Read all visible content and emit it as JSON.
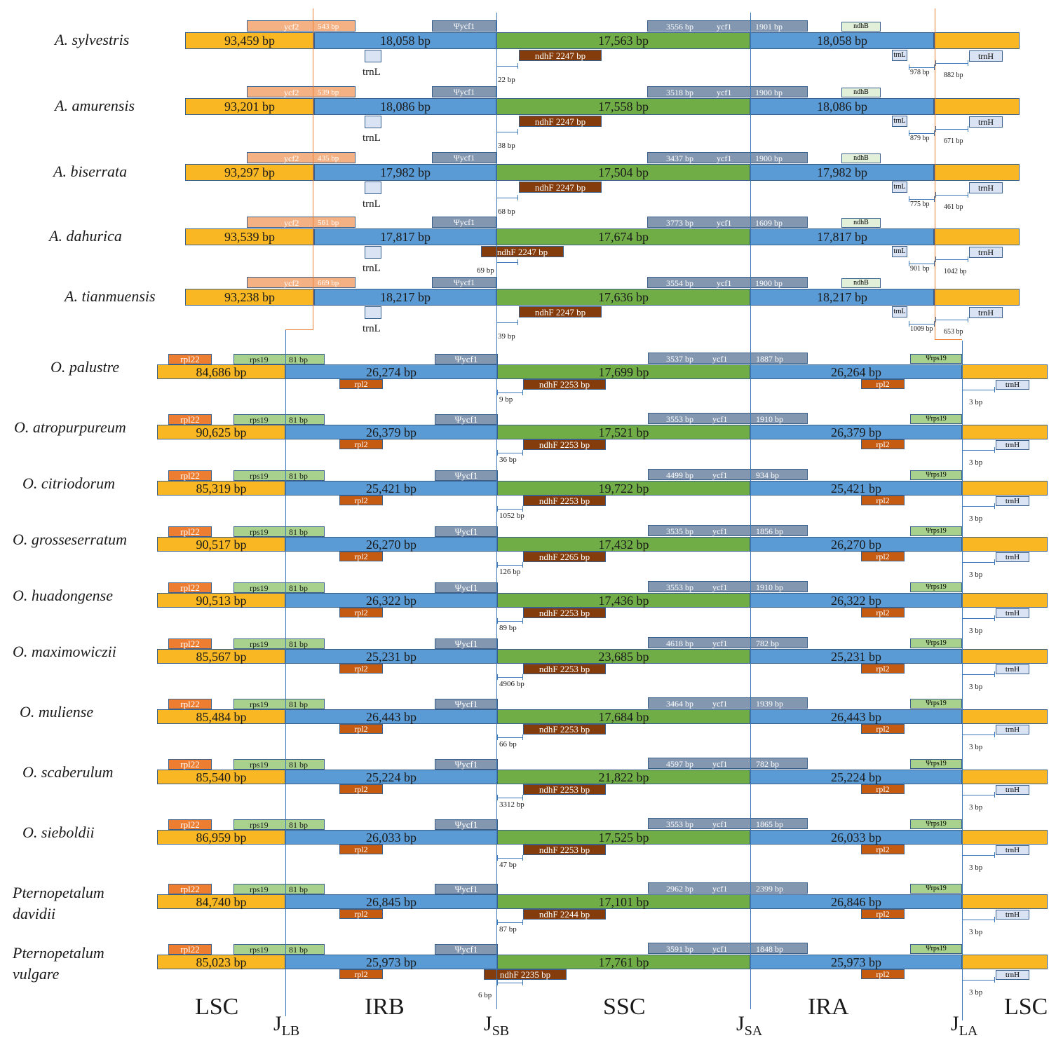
{
  "colors": {
    "lsc": "#f9b823",
    "ir": "#5b9bd5",
    "ssc": "#70ad47",
    "ycf2": "#f4b183",
    "ycf1": "#8497b0",
    "ndhF": "#843c0c",
    "ndhB": "#e2efd9",
    "trn": "#dae3f3",
    "rpl22": "#ed7d31",
    "rps19": "#a9d18e",
    "rpl2": "#c55a11",
    "junction_line": "#3a78b8",
    "orange_line": "#ed7d31"
  },
  "angelica": [
    {
      "name": "A. sylvestris",
      "lsc": "93,459 bp",
      "irb": "18,058 bp",
      "ssc": "17,563 bp",
      "ira": "18,058 bp",
      "ycf2": "ycf2",
      "ycf2_len": "543 bp",
      "psi_ycf1": "Ψycf1",
      "ycf1_left": "3556 bp",
      "ycf1": "ycf1",
      "ycf1_right": "1901 bp",
      "ndhB": "ndhB",
      "trnL": "trnL",
      "ndhF": "ndhF 2247 bp",
      "ndhF_gap": "22 bp",
      "trnL2": "trnL",
      "trnH": "trnH",
      "gap_a": "978 bp",
      "gap_b": "882 bp"
    },
    {
      "name": "A. amurensis",
      "lsc": "93,201 bp",
      "irb": "18,086 bp",
      "ssc": "17,558 bp",
      "ira": "18,086 bp",
      "ycf2": "ycf2",
      "ycf2_len": "539 bp",
      "psi_ycf1": "Ψycf1",
      "ycf1_left": "3518 bp",
      "ycf1": "ycf1",
      "ycf1_right": "1900 bp",
      "ndhB": "ndhB",
      "trnL": "trnL",
      "ndhF": "ndhF 2247 bp",
      "ndhF_gap": "38 bp",
      "trnL2": "trnL",
      "trnH": "trnH",
      "gap_a": "879 bp",
      "gap_b": "671 bp"
    },
    {
      "name": "A. biserrata",
      "lsc": "93,297 bp",
      "irb": "17,982 bp",
      "ssc": "17,504 bp",
      "ira": "17,982 bp",
      "ycf2": "ycf2",
      "ycf2_len": "435 bp",
      "psi_ycf1": "Ψycf1",
      "ycf1_left": "3437 bp",
      "ycf1": "ycf1",
      "ycf1_right": "1900 bp",
      "ndhB": "ndhB",
      "trnL": "trnL",
      "ndhF": "ndhF 2247 bp",
      "ndhF_gap": "68 bp",
      "trnL2": "trnL",
      "trnH": "trnH",
      "gap_a": "775 bp",
      "gap_b": "461 bp"
    },
    {
      "name": "A. dahurica",
      "lsc": "93,539 bp",
      "irb": "17,817 bp",
      "ssc": "17,674 bp",
      "ira": "17,817 bp",
      "ycf2": "ycf2",
      "ycf2_len": "561 bp",
      "psi_ycf1": "Ψycf1",
      "ycf1_left": "3773 bp",
      "ycf1": "ycf1",
      "ycf1_right": "1609 bp",
      "ndhB": "ndhB",
      "trnL": "trnL",
      "ndhF": "ndhF 2247 bp",
      "ndhF_gap": "69 bp",
      "trnL2": "trnL",
      "trnH": "trnH",
      "gap_a": "901 bp",
      "gap_b": "1042 bp"
    },
    {
      "name": "A. tianmuensis",
      "lsc": "93,238 bp",
      "irb": "18,217 bp",
      "ssc": "17,636 bp",
      "ira": "18,217 bp",
      "ycf2": "ycf2",
      "ycf2_len": "669 bp",
      "psi_ycf1": "Ψycf1",
      "ycf1_left": "3554 bp",
      "ycf1": "ycf1",
      "ycf1_right": "1900 bp",
      "ndhB": "ndhB",
      "trnL": "trnL",
      "ndhF": "ndhF 2247 bp",
      "ndhF_gap": "39 bp",
      "trnL2": "trnL",
      "trnH": "trnH",
      "gap_a": "1009 bp",
      "gap_b": "653 bp"
    }
  ],
  "others": [
    {
      "name": "O. palustre",
      "lsc": "84,686 bp",
      "irb": "26,274 bp",
      "ssc": "17,699 bp",
      "ira": "26,264 bp",
      "rpl22": "rpl22",
      "rps19": "rps19",
      "rps19_len": "81 bp",
      "psi_ycf1": "Ψycf1",
      "ycf1_left": "3537 bp",
      "ycf1": "ycf1",
      "ycf1_right": "1887 bp",
      "psi_rps19": "Ψrps19",
      "rpl2": "rpl2",
      "ndhF": "ndhF 2253 bp",
      "ndhF_gap": "9 bp",
      "rpl2b": "rpl2",
      "trnH": "trnH",
      "gap": "3 bp"
    },
    {
      "name": "O. atropurpureum",
      "lsc": "90,625 bp",
      "irb": "26,379 bp",
      "ssc": "17,521 bp",
      "ira": "26,379 bp",
      "rpl22": "rpl22",
      "rps19": "rps19",
      "rps19_len": "81 bp",
      "psi_ycf1": "Ψycf1",
      "ycf1_left": "3553 bp",
      "ycf1": "ycf1",
      "ycf1_right": "1910 bp",
      "psi_rps19": "Ψrps19",
      "rpl2": "rpl2",
      "ndhF": "ndhF 2253 bp",
      "ndhF_gap": "36 bp",
      "rpl2b": "rpl2",
      "trnH": "trnH",
      "gap": "3 bp"
    },
    {
      "name": "O. citriodorum",
      "lsc": "85,319 bp",
      "irb": "25,421 bp",
      "ssc": "19,722 bp",
      "ira": "25,421 bp",
      "rpl22": "rpl22",
      "rps19": "rps19",
      "rps19_len": "81 bp",
      "psi_ycf1": "Ψycf1",
      "ycf1_left": "4499 bp",
      "ycf1": "ycf1",
      "ycf1_right": "934 bp",
      "psi_rps19": "Ψrps19",
      "rpl2": "rpl2",
      "ndhF": "ndhF 2253 bp",
      "ndhF_gap": "1052 bp",
      "rpl2b": "rpl2",
      "trnH": "trnH",
      "gap": "3 bp"
    },
    {
      "name": "O. grosseserratum",
      "lsc": "90,517 bp",
      "irb": "26,270 bp",
      "ssc": "17,432 bp",
      "ira": "26,270 bp",
      "rpl22": "rpl22",
      "rps19": "rps19",
      "rps19_len": "81 bp",
      "psi_ycf1": "Ψycf1",
      "ycf1_left": "3535 bp",
      "ycf1": "ycf1",
      "ycf1_right": "1856 bp",
      "psi_rps19": "Ψrps19",
      "rpl2": "rpl2",
      "ndhF": "ndhF 2265 bp",
      "ndhF_gap": "126 bp",
      "rpl2b": "rpl2",
      "trnH": "trnH",
      "gap": "3 bp"
    },
    {
      "name": "O. huadongense",
      "lsc": "90,513 bp",
      "irb": "26,322 bp",
      "ssc": "17,436 bp",
      "ira": "26,322 bp",
      "rpl22": "rpl22",
      "rps19": "rps19",
      "rps19_len": "81 bp",
      "psi_ycf1": "Ψycf1",
      "ycf1_left": "3553 bp",
      "ycf1": "ycf1",
      "ycf1_right": "1910 bp",
      "psi_rps19": "Ψrps19",
      "rpl2": "rpl2",
      "ndhF": "ndhF 2253 bp",
      "ndhF_gap": "89 bp",
      "rpl2b": "rpl2",
      "trnH": "trnH",
      "gap": "3 bp"
    },
    {
      "name": "O. maximowiczii",
      "lsc": "85,567 bp",
      "irb": "25,231 bp",
      "ssc": "23,685 bp",
      "ira": "25,231 bp",
      "rpl22": "rpl22",
      "rps19": "rps19",
      "rps19_len": "81 bp",
      "psi_ycf1": "Ψycf1",
      "ycf1_left": "4618 bp",
      "ycf1": "ycf1",
      "ycf1_right": "782 bp",
      "psi_rps19": "Ψrps19",
      "rpl2": "rpl2",
      "ndhF": "ndhF 2253 bp",
      "ndhF_gap": "4906 bp",
      "rpl2b": "rpl2",
      "trnH": "trnH",
      "gap": "3 bp"
    },
    {
      "name": "O. muliense",
      "lsc": "85,484 bp",
      "irb": "26,443 bp",
      "ssc": "17,684 bp",
      "ira": "26,443 bp",
      "rpl22": "rpl22",
      "rps19": "rps19",
      "rps19_len": "81 bp",
      "psi_ycf1": "Ψycf1",
      "ycf1_left": "3464 bp",
      "ycf1": "ycf1",
      "ycf1_right": "1939 bp",
      "psi_rps19": "Ψrps19",
      "rpl2": "rpl2",
      "ndhF": "ndhF 2253 bp",
      "ndhF_gap": "66 bp",
      "rpl2b": "rpl2",
      "trnH": "trnH",
      "gap": "3 bp"
    },
    {
      "name": "O. scaberulum",
      "lsc": "85,540 bp",
      "irb": "25,224 bp",
      "ssc": "21,822 bp",
      "ira": "25,224 bp",
      "rpl22": "rpl22",
      "rps19": "rps19",
      "rps19_len": "81 bp",
      "psi_ycf1": "Ψycf1",
      "ycf1_left": "4597 bp",
      "ycf1": "ycf1",
      "ycf1_right": "782 bp",
      "psi_rps19": "Ψrps19",
      "rpl2": "rpl2",
      "ndhF": "ndhF 2253 bp",
      "ndhF_gap": "3312 bp",
      "rpl2b": "rpl2",
      "trnH": "trnH",
      "gap": "3 bp"
    },
    {
      "name": "O. sieboldii",
      "lsc": "86,959 bp",
      "irb": "26,033 bp",
      "ssc": "17,525 bp",
      "ira": "26,033 bp",
      "rpl22": "rpl22",
      "rps19": "rps19",
      "rps19_len": "81 bp",
      "psi_ycf1": "Ψycf1",
      "ycf1_left": "3553 bp",
      "ycf1": "ycf1",
      "ycf1_right": "1865 bp",
      "psi_rps19": "Ψrps19",
      "rpl2": "rpl2",
      "ndhF": "ndhF 2253 bp",
      "ndhF_gap": "47 bp",
      "rpl2b": "rpl2",
      "trnH": "trnH",
      "gap": "3 bp"
    },
    {
      "name": "Pternopetalum davidii",
      "name_line1": "Pternopetalum",
      "name_line2": "davidii",
      "lsc": "84,740 bp",
      "irb": "26,845 bp",
      "ssc": "17,101 bp",
      "ira": "26,846 bp",
      "rpl22": "rpl22",
      "rps19": "rps19",
      "rps19_len": "81 bp",
      "psi_ycf1": "Ψycf1",
      "ycf1_left": "2962 bp",
      "ycf1": "ycf1",
      "ycf1_right": "2399 bp",
      "psi_rps19": "Ψrps19",
      "rpl2": "rpl2",
      "ndhF": "ndhF 2244 bp",
      "ndhF_gap": "87 bp",
      "rpl2b": "rpl2",
      "trnH": "trnH",
      "gap": "3 bp"
    },
    {
      "name": "Pternopetalum vulgare",
      "name_line1": "Pternopetalum",
      "name_line2": "vulgare",
      "lsc": "85,023 bp",
      "irb": "25,973 bp",
      "ssc": "17,761 bp",
      "ira": "25,973 bp",
      "rpl22": "rpl22",
      "rps19": "rps19",
      "rps19_len": "81 bp",
      "psi_ycf1": "Ψycf1",
      "ycf1_left": "3591 bp",
      "ycf1": "ycf1",
      "ycf1_right": "1848 bp",
      "psi_rps19": "Ψrps19",
      "rpl2": "rpl2",
      "ndhF": "ndhF 2235 bp",
      "ndhF_gap": "6 bp",
      "rpl2b": "rpl2",
      "trnH": "trnH",
      "gap": "3 bp"
    }
  ],
  "footer": {
    "regions": [
      "LSC",
      "IRB",
      "SSC",
      "IRA",
      "LSC"
    ],
    "junctions": [
      {
        "main": "J",
        "sub": "LB"
      },
      {
        "main": "J",
        "sub": "SB"
      },
      {
        "main": "J",
        "sub": "SA"
      },
      {
        "main": "J",
        "sub": "LA"
      }
    ]
  }
}
